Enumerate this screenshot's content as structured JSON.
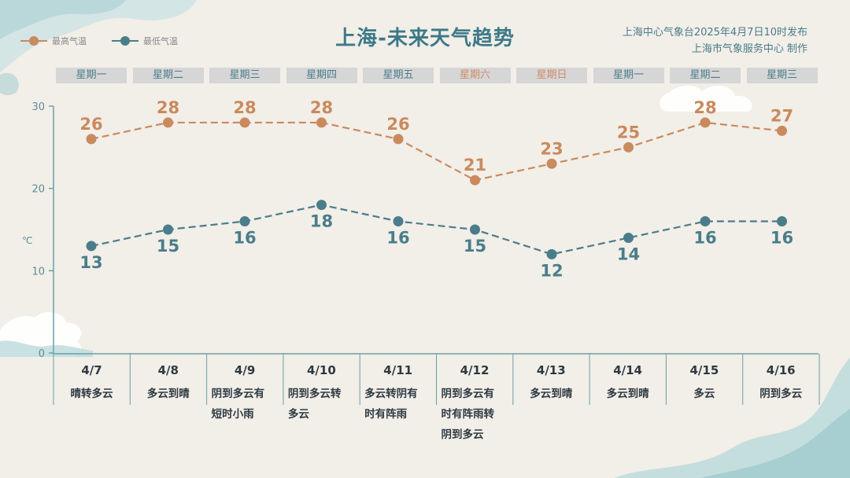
{
  "header": {
    "title": "上海-未来天气趋势",
    "issuer_line1": "上海中心气象台2025年4月7日10时发布",
    "issuer_line2": "上海市气象服务中心 制作"
  },
  "colors": {
    "high": "#c98a5e",
    "low": "#4a7d8a",
    "weekend": "#d08a6a",
    "weekday": "#4a7d8a",
    "axis": "#6aa0a8"
  },
  "chart_data": {
    "type": "line",
    "unit_label": "℃",
    "ylim": [
      0,
      30
    ],
    "yticks": [
      0,
      10,
      20,
      30
    ],
    "weekdays": [
      "星期一",
      "星期二",
      "星期三",
      "星期四",
      "星期五",
      "星期六",
      "星期日",
      "星期一",
      "星期二",
      "星期三"
    ],
    "weekend_flags": [
      false,
      false,
      false,
      false,
      false,
      true,
      true,
      false,
      false,
      false
    ],
    "categories": [
      "4/7",
      "4/8",
      "4/9",
      "4/10",
      "4/11",
      "4/12",
      "4/13",
      "4/14",
      "4/15",
      "4/16"
    ],
    "descriptions": [
      [
        "晴转多云"
      ],
      [
        "多云到晴"
      ],
      [
        "阴到多云有",
        "短时小雨"
      ],
      [
        "阴到多云转",
        "多云"
      ],
      [
        "多云转阴有",
        "时有阵雨"
      ],
      [
        "阴到多云有",
        "时有阵雨转",
        "阴到多云"
      ],
      [
        "多云到晴"
      ],
      [
        "多云到晴"
      ],
      [
        "多云"
      ],
      [
        "阴到多云"
      ]
    ],
    "series": [
      {
        "name": "最高气温",
        "key": "high",
        "values": [
          26,
          28,
          28,
          28,
          26,
          21,
          23,
          25,
          28,
          27
        ]
      },
      {
        "name": "最低气温",
        "key": "low",
        "values": [
          13,
          15,
          16,
          18,
          16,
          15,
          12,
          14,
          16,
          16
        ]
      }
    ]
  }
}
